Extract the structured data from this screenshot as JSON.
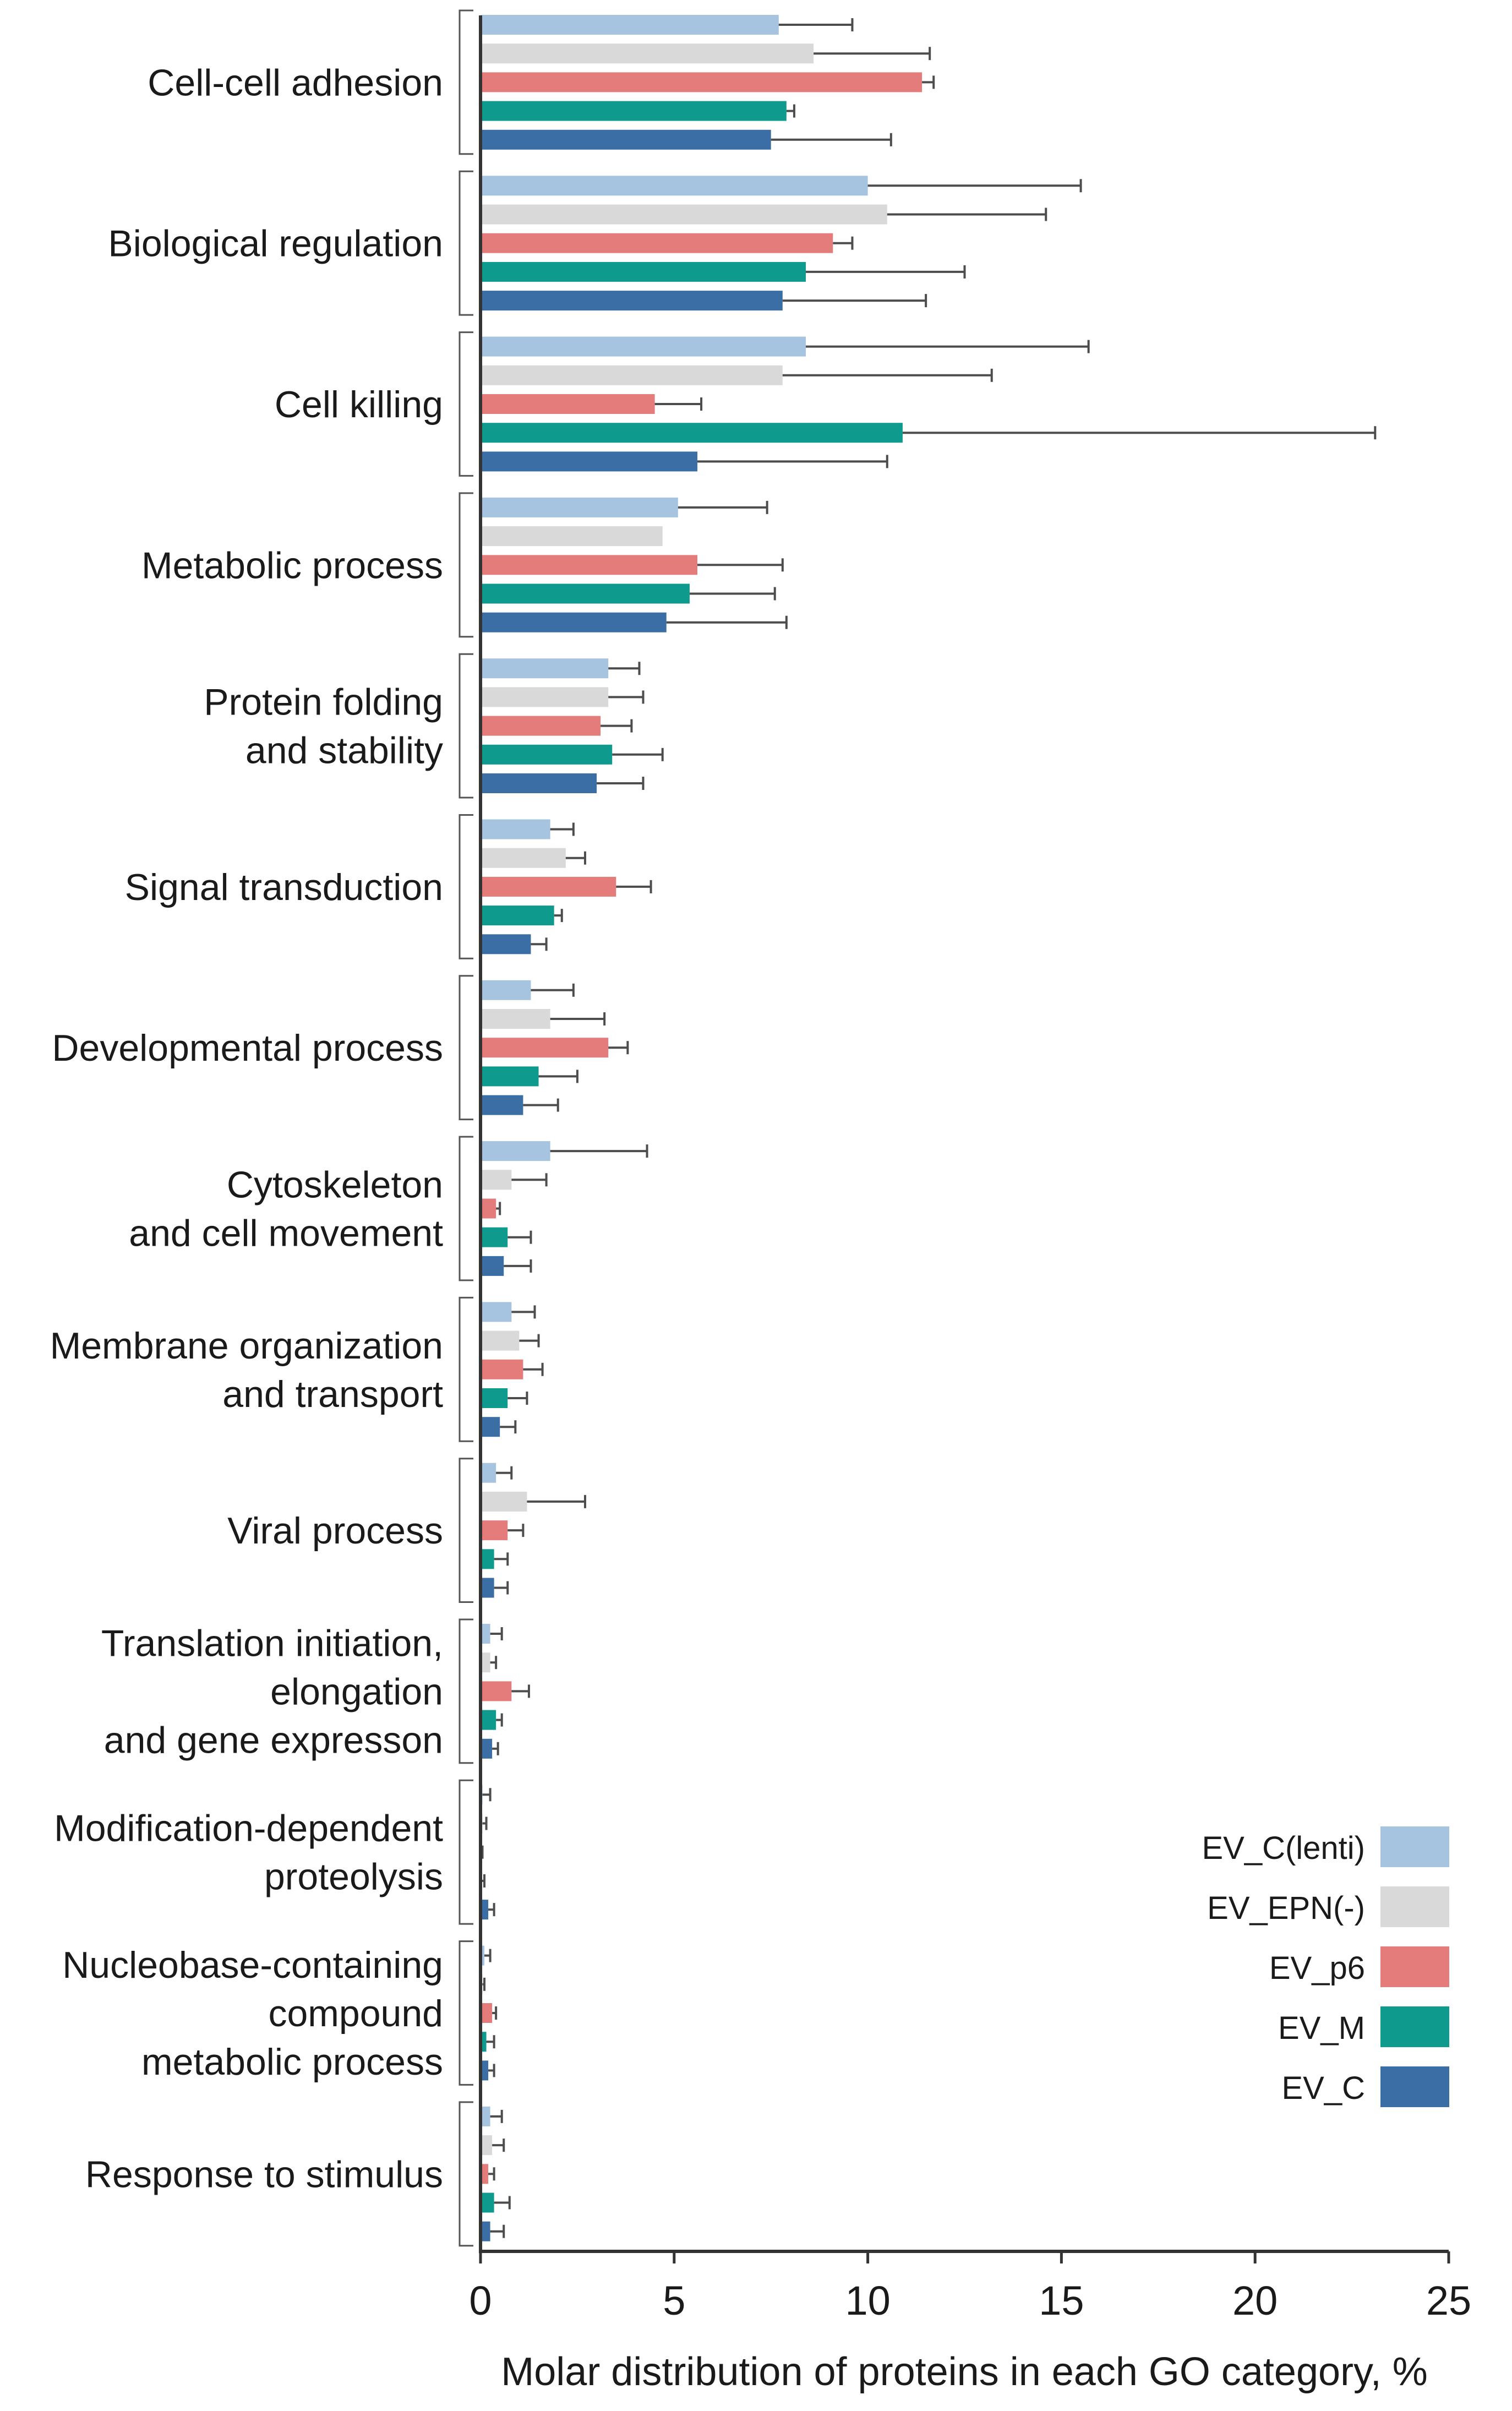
{
  "chart_data": {
    "type": "bar",
    "orientation": "horizontal",
    "xlabel": "Molar distribution of proteins in each GO category, %",
    "xlim": [
      0,
      25
    ],
    "xticks": [
      0,
      5,
      10,
      15,
      20,
      25
    ],
    "grid": false,
    "legend_position": "bottom-right",
    "categories": [
      [
        "Cell-cell adhesion"
      ],
      [
        "Biological regulation"
      ],
      [
        "Cell killing"
      ],
      [
        "Metabolic  process"
      ],
      [
        "Protein folding",
        "and stability"
      ],
      [
        "Signal transduction"
      ],
      [
        "Developmental process"
      ],
      [
        "Cytoskeleton",
        "and cell movement"
      ],
      [
        "Membrane organization",
        "and transport"
      ],
      [
        "Viral process"
      ],
      [
        "Translation initiation,",
        "elongation",
        "and gene expresson"
      ],
      [
        "Modification-dependent",
        "proteolysis"
      ],
      [
        "Nucleobase-containing",
        "compound",
        "metabolic process"
      ],
      [
        "Response to stimulus"
      ]
    ],
    "series": [
      {
        "name": "EV_C(lenti)",
        "color": "#a6c3e0",
        "values": [
          7.7,
          10.0,
          8.4,
          5.1,
          3.3,
          1.8,
          1.3,
          1.8,
          0.8,
          0.4,
          0.25,
          0.05,
          0.1,
          0.25
        ],
        "errors": [
          1.9,
          5.5,
          7.3,
          2.3,
          0.8,
          0.6,
          1.1,
          2.5,
          0.6,
          0.4,
          0.3,
          0.2,
          0.15,
          0.3
        ]
      },
      {
        "name": "EV_EPN(-)",
        "color": "#d9d9d9",
        "values": [
          8.6,
          10.5,
          7.8,
          4.7,
          3.3,
          2.2,
          1.8,
          0.8,
          1.0,
          1.2,
          0.25,
          0.05,
          0.05,
          0.3
        ]
      },
      {
        "name": "EV_p6",
        "color": "#e57c7c",
        "values": [
          11.4,
          9.1,
          4.5,
          5.6,
          3.1,
          3.5,
          3.3,
          0.4,
          1.1,
          0.7,
          0.8,
          0.0,
          0.3,
          0.2
        ]
      },
      {
        "name": "EV_M",
        "color": "#0f9a8e",
        "values": [
          7.9,
          8.4,
          10.9,
          5.4,
          3.4,
          1.9,
          1.5,
          0.7,
          0.7,
          0.35,
          0.4,
          0.0,
          0.15,
          0.35
        ]
      },
      {
        "name": "EV_C",
        "color": "#3a6ea5",
        "values": [
          7.5,
          7.8,
          5.6,
          4.8,
          3.0,
          1.3,
          1.1,
          0.6,
          0.5,
          0.35,
          0.3,
          0.2,
          0.2,
          0.25
        ]
      }
    ]
  }
}
